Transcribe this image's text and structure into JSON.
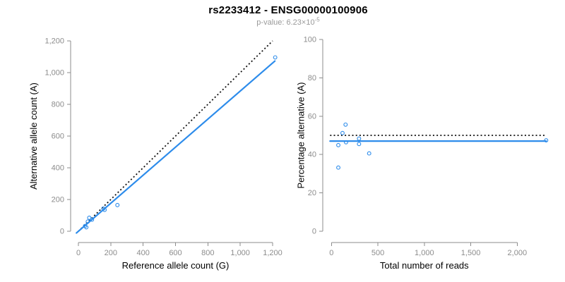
{
  "header": {
    "title": "rs2233412 - ENSG00000100906",
    "subtitle_label": "p-value: ",
    "subtitle_value": "6.23×10",
    "subtitle_exponent": "-5"
  },
  "colors": {
    "blue": "#2D8CEB",
    "black": "#111111",
    "axis_gray": "#8C8C8C",
    "tick_label_gray": "#8C8C8C",
    "axis_title_color": "#000000",
    "subtitle_gray": "#999999"
  },
  "chart_data": [
    {
      "id": "allele-count-scatter",
      "type": "scatter",
      "title": "",
      "xlabel": "Reference allele count (G)",
      "ylabel": "Alternative allele count (A)",
      "xlim": [
        0,
        1200
      ],
      "ylim": [
        0,
        1200
      ],
      "x_ticks": [
        0,
        200,
        400,
        600,
        800,
        1000,
        1200
      ],
      "x_tick_labels": [
        "0",
        "200",
        "400",
        "600",
        "800",
        "1,000",
        "1,200"
      ],
      "y_ticks": [
        0,
        200,
        400,
        600,
        800,
        1000,
        1200
      ],
      "y_tick_labels": [
        "0",
        "200",
        "400",
        "600",
        "800",
        "1,000",
        "1,200"
      ],
      "grid": false,
      "legend": null,
      "points": [
        [
          41,
          33
        ],
        [
          49,
          25
        ],
        [
          58,
          61
        ],
        [
          67,
          85
        ],
        [
          84,
          73
        ],
        [
          154,
          143
        ],
        [
          162,
          135
        ],
        [
          241,
          165
        ],
        [
          1216,
          1096
        ]
      ],
      "lines": [
        {
          "name": "identity-line",
          "style": "dotted",
          "color": "black",
          "points": [
            [
              0,
              0
            ],
            [
              1200,
              1200
            ]
          ]
        },
        {
          "name": "fit-line",
          "style": "solid",
          "color": "blue",
          "points": [
            [
              -12,
              -11
            ],
            [
              1214,
              1073
            ]
          ]
        }
      ]
    },
    {
      "id": "percentage-alternative-scatter",
      "type": "scatter",
      "title": "",
      "xlabel": "Total number of reads",
      "ylabel": "Percentage alternative (A)",
      "xlim": [
        0,
        2000
      ],
      "ylim": [
        0,
        100
      ],
      "x_ticks": [
        0,
        500,
        1000,
        1500,
        2000
      ],
      "x_tick_labels": [
        "0",
        "500",
        "1,000",
        "1,500",
        "2,000"
      ],
      "y_ticks": [
        0,
        20,
        40,
        60,
        80,
        100
      ],
      "y_tick_labels": [
        "0",
        "20",
        "40",
        "60",
        "80",
        "100"
      ],
      "grid": false,
      "legend": null,
      "points": [
        [
          74,
          33.2
        ],
        [
          74,
          44.9
        ],
        [
          119,
          51.2
        ],
        [
          152,
          55.6
        ],
        [
          157,
          46.4
        ],
        [
          297,
          48.3
        ],
        [
          297,
          45.5
        ],
        [
          406,
          40.6
        ],
        [
          2312,
          47.4
        ]
      ],
      "lines": [
        {
          "name": "null-line-50pct",
          "style": "dotted",
          "color": "black",
          "points": [
            [
              -15,
              50
            ],
            [
              2312,
              50
            ]
          ]
        },
        {
          "name": "fit-line",
          "style": "solid",
          "color": "blue",
          "points": [
            [
              -15,
              47
            ],
            [
              2312,
              47
            ]
          ]
        }
      ]
    }
  ]
}
